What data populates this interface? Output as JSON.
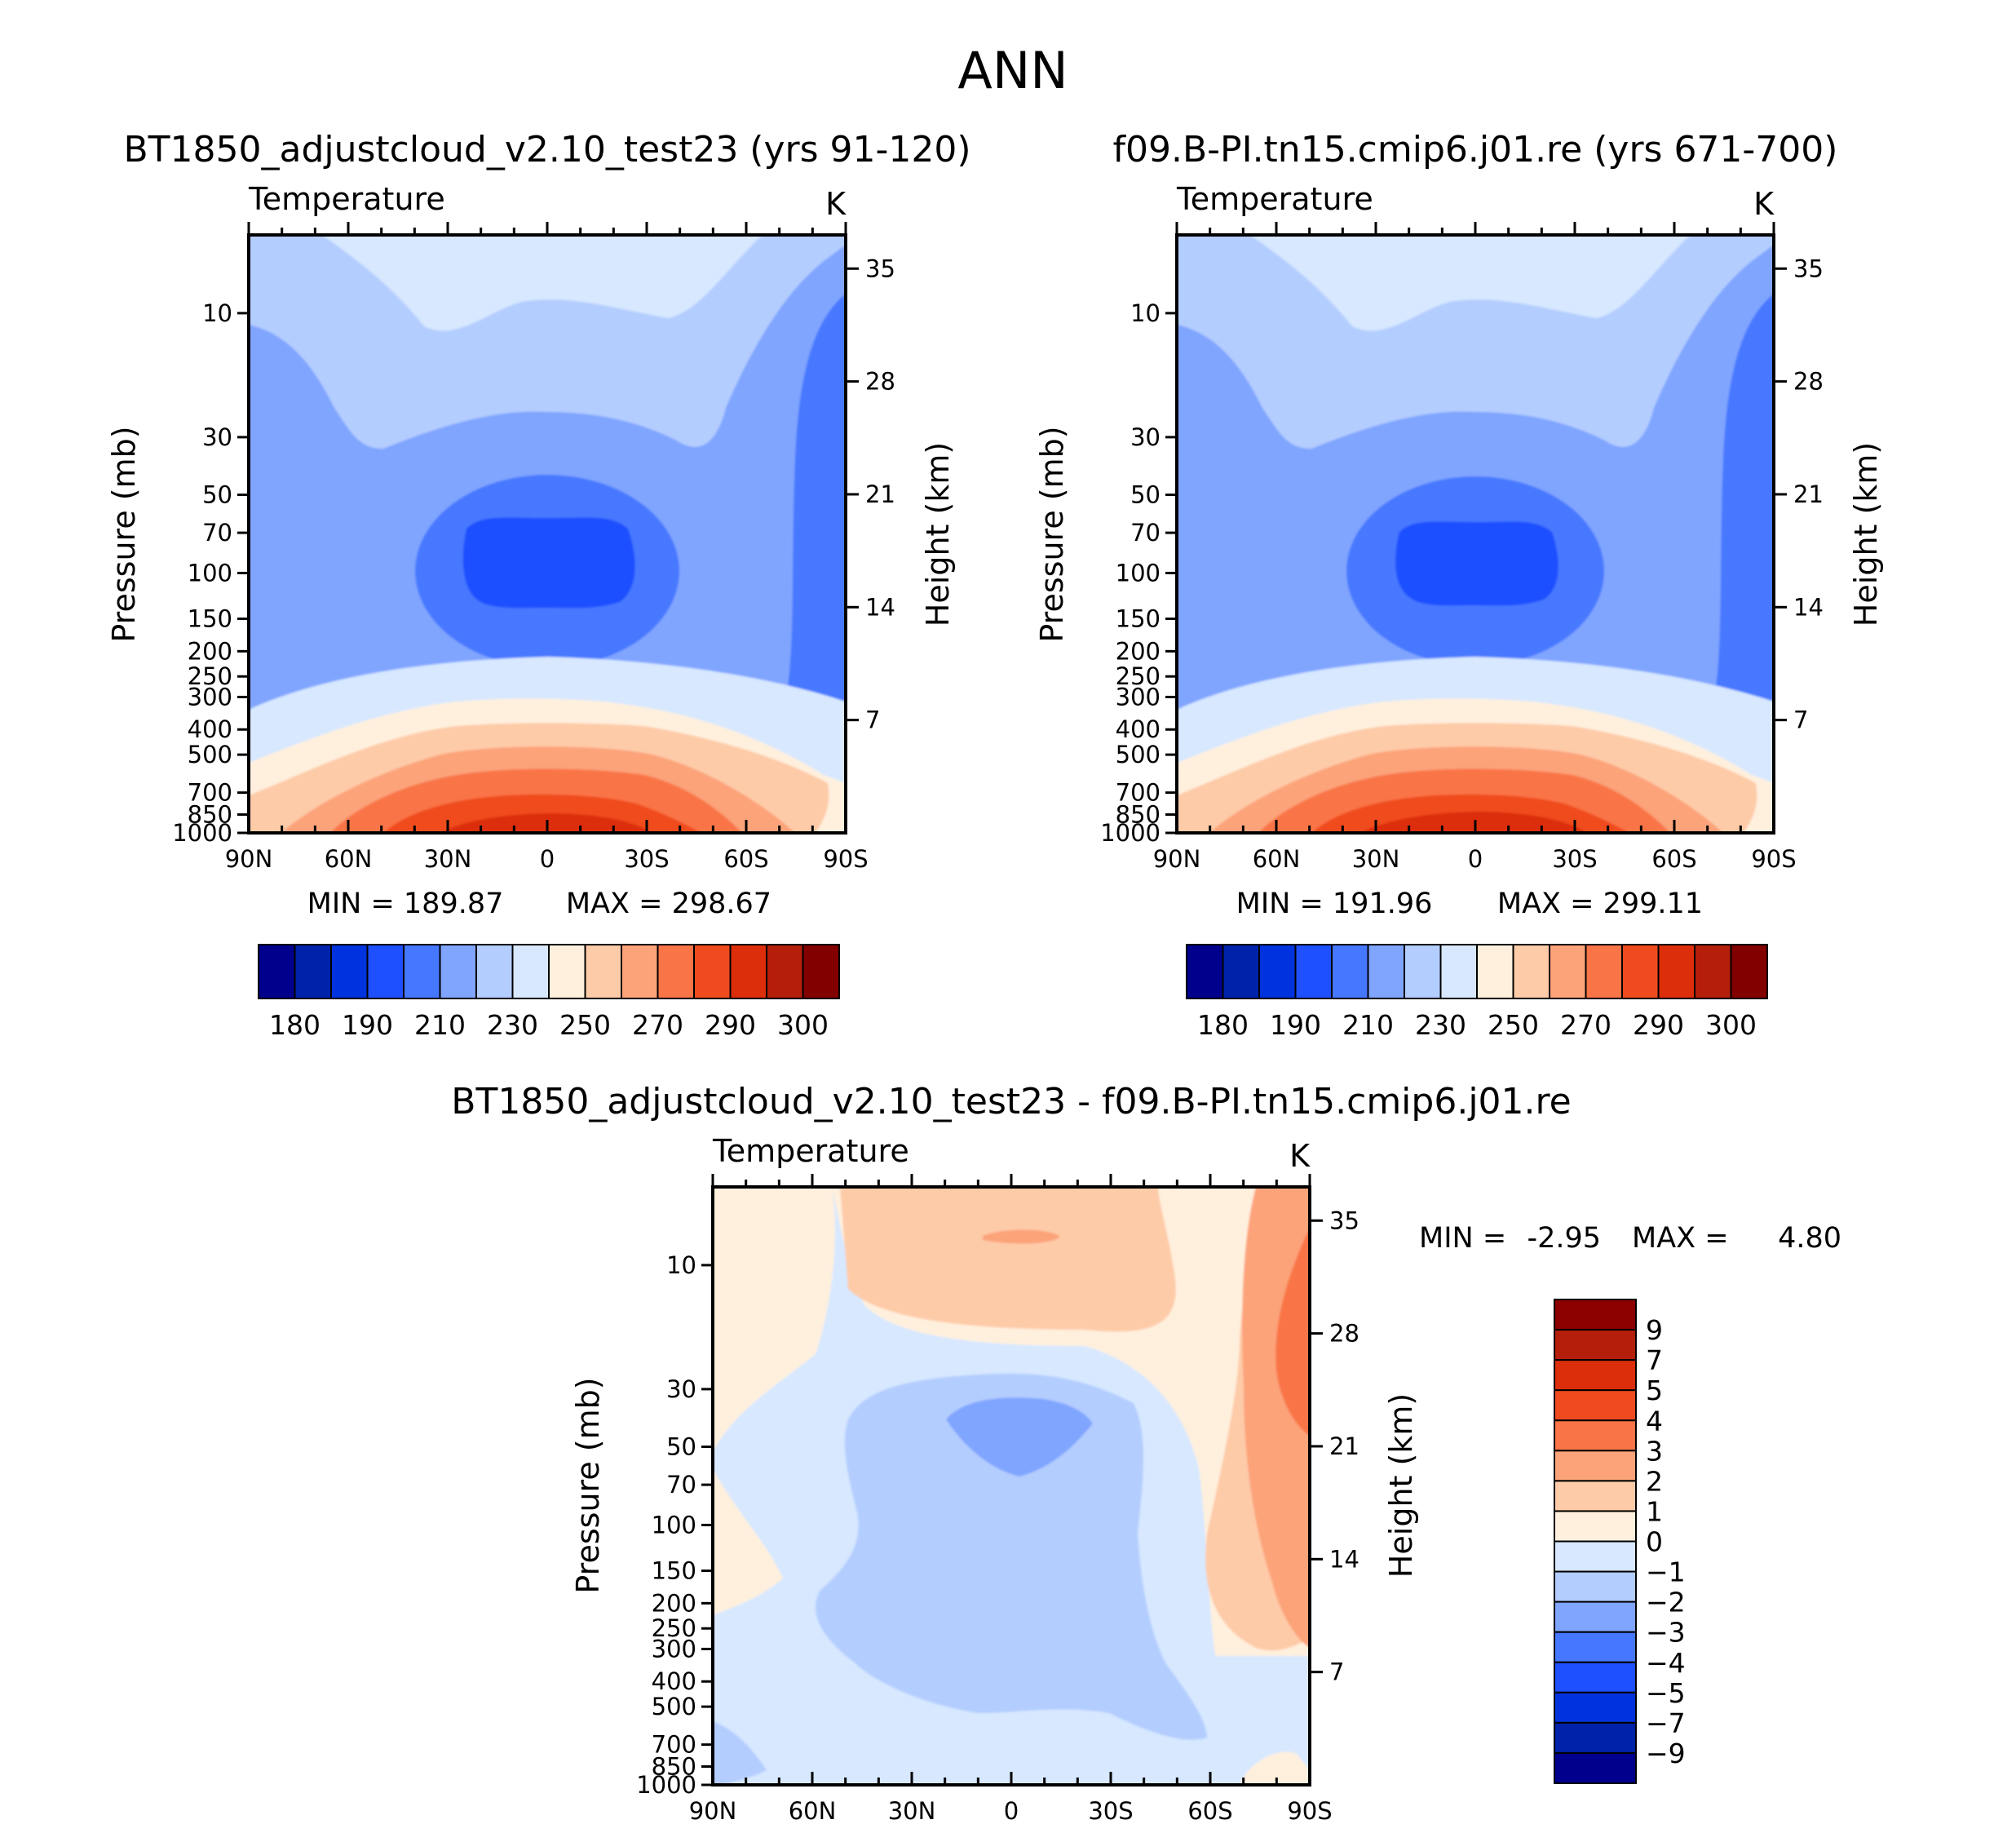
{
  "figure": {
    "title": "ANN"
  },
  "chart_data": [
    {
      "type": "contour",
      "title": "BT1850_adjustcloud_v2.10_test23 (yrs 91-120)",
      "left_title": "Temperature",
      "right_title": "K",
      "xlabel": "",
      "ylabel": "Pressure (mb)",
      "y2label": "Height (km)",
      "x_ticks": [
        "90N",
        "60N",
        "30N",
        "0",
        "30S",
        "60S",
        "90S"
      ],
      "y_ticks": [
        "10",
        "30",
        "50",
        "70",
        "100",
        "150",
        "200",
        "250",
        "300",
        "400",
        "500",
        "700",
        "850",
        "1000"
      ],
      "y_tick_values": [
        10,
        30,
        50,
        70,
        100,
        150,
        200,
        250,
        300,
        400,
        500,
        700,
        850,
        1000
      ],
      "y2_ticks": [
        "35",
        "28",
        "21",
        "14",
        "7"
      ],
      "y2_tick_values": [
        35,
        28,
        21,
        14,
        7
      ],
      "ylim": [
        5,
        1000
      ],
      "min_label": "MIN = 189.87",
      "max_label": "MAX = 298.67",
      "min": 189.87,
      "max": 298.67,
      "colorbar": {
        "orientation": "horizontal",
        "levels": [
          180,
          185,
          190,
          200,
          210,
          220,
          230,
          240,
          250,
          260,
          270,
          280,
          290,
          295,
          300
        ],
        "labels": [
          "180",
          "190",
          "210",
          "230",
          "250",
          "270",
          "290",
          "300"
        ],
        "colors": [
          "#00008c",
          "#0022aa",
          "#0033dd",
          "#1e50ff",
          "#4678ff",
          "#80a5ff",
          "#b4cdff",
          "#d7e8ff",
          "#fff0de",
          "#fecba8",
          "#fca37a",
          "#f97447",
          "#f04b1e",
          "#dc2e0a",
          "#b41e0a",
          "#820000"
        ]
      }
    },
    {
      "type": "contour",
      "title": "f09.B-PI.tn15.cmip6.j01.re (yrs 671-700)",
      "left_title": "Temperature",
      "right_title": "K",
      "xlabel": "",
      "ylabel": "Pressure (mb)",
      "y2label": "Height (km)",
      "x_ticks": [
        "90N",
        "60N",
        "30N",
        "0",
        "30S",
        "60S",
        "90S"
      ],
      "y_ticks": [
        "10",
        "30",
        "50",
        "70",
        "100",
        "150",
        "200",
        "250",
        "300",
        "400",
        "500",
        "700",
        "850",
        "1000"
      ],
      "y_tick_values": [
        10,
        30,
        50,
        70,
        100,
        150,
        200,
        250,
        300,
        400,
        500,
        700,
        850,
        1000
      ],
      "y2_ticks": [
        "35",
        "28",
        "21",
        "14",
        "7"
      ],
      "y2_tick_values": [
        35,
        28,
        21,
        14,
        7
      ],
      "ylim": [
        5,
        1000
      ],
      "min_label": "MIN = 191.96",
      "max_label": "MAX = 299.11",
      "min": 191.96,
      "max": 299.11,
      "colorbar": {
        "orientation": "horizontal",
        "levels": [
          180,
          185,
          190,
          200,
          210,
          220,
          230,
          240,
          250,
          260,
          270,
          280,
          290,
          295,
          300
        ],
        "labels": [
          "180",
          "190",
          "210",
          "230",
          "250",
          "270",
          "290",
          "300"
        ],
        "colors": [
          "#00008c",
          "#0022aa",
          "#0033dd",
          "#1e50ff",
          "#4678ff",
          "#80a5ff",
          "#b4cdff",
          "#d7e8ff",
          "#fff0de",
          "#fecba8",
          "#fca37a",
          "#f97447",
          "#f04b1e",
          "#dc2e0a",
          "#b41e0a",
          "#820000"
        ]
      }
    },
    {
      "type": "contour",
      "title": "BT1850_adjustcloud_v2.10_test23 - f09.B-PI.tn15.cmip6.j01.re",
      "left_title": "Temperature",
      "right_title": "K",
      "xlabel": "",
      "ylabel": "Pressure (mb)",
      "y2label": "Height (km)",
      "x_ticks": [
        "90N",
        "60N",
        "30N",
        "0",
        "30S",
        "60S",
        "90S"
      ],
      "y_ticks": [
        "10",
        "30",
        "50",
        "70",
        "100",
        "150",
        "200",
        "250",
        "300",
        "400",
        "500",
        "700",
        "850",
        "1000"
      ],
      "y_tick_values": [
        10,
        30,
        50,
        70,
        100,
        150,
        200,
        250,
        300,
        400,
        500,
        700,
        850,
        1000
      ],
      "y2_ticks": [
        "35",
        "28",
        "21",
        "14",
        "7"
      ],
      "y2_tick_values": [
        35,
        28,
        21,
        14,
        7
      ],
      "ylim": [
        5,
        1000
      ],
      "min_label": "MIN =",
      "min_value": "-2.95",
      "max_label": "MAX =",
      "max_value": "4.80",
      "min": -2.95,
      "max": 4.8,
      "colorbar": {
        "orientation": "vertical",
        "levels": [
          9,
          7,
          5,
          4,
          3,
          2,
          1,
          0,
          -1,
          -2,
          -3,
          -4,
          -5,
          -7,
          -9
        ],
        "labels": [
          "9",
          "7",
          "5",
          "4",
          "3",
          "2",
          "1",
          "0",
          "-1",
          "-2",
          "-3",
          "-4",
          "-5",
          "-7",
          "-9"
        ],
        "colors": [
          "#8c0000",
          "#b41e0a",
          "#dc2e0a",
          "#f04b1e",
          "#f97447",
          "#fca37a",
          "#fecba8",
          "#fff0de",
          "#d7e8ff",
          "#b4cdff",
          "#80a5ff",
          "#4678ff",
          "#1e50ff",
          "#0033dd",
          "#0022aa",
          "#00008c"
        ]
      }
    }
  ]
}
